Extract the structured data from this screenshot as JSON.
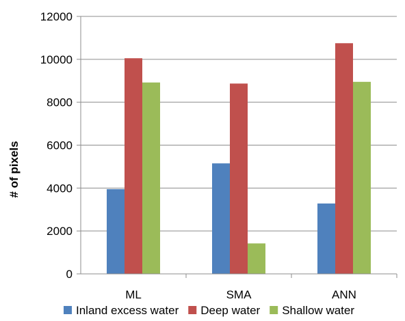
{
  "chart_data": {
    "type": "bar",
    "title": "",
    "xlabel": "",
    "ylabel": "# of pixels",
    "ylim": [
      0,
      12000
    ],
    "yticks": [
      0,
      2000,
      4000,
      6000,
      8000,
      10000,
      12000
    ],
    "grid": true,
    "legend_position": "bottom",
    "categories": [
      "ML",
      "SMA",
      "ANN"
    ],
    "series": [
      {
        "name": "Inland excess water",
        "color": "#4f81bd",
        "values": [
          3950,
          5150,
          3280
        ]
      },
      {
        "name": "Deep water",
        "color": "#c0504d",
        "values": [
          10050,
          8870,
          10750
        ]
      },
      {
        "name": "Shallow water",
        "color": "#9bbb59",
        "values": [
          8920,
          1420,
          8950
        ]
      }
    ]
  }
}
